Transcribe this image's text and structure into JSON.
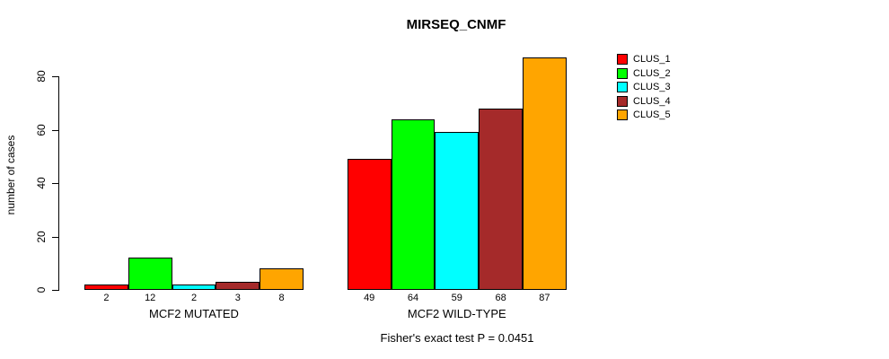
{
  "chart_data": {
    "type": "bar",
    "title": "MIRSEQ_CNMF",
    "subtitle": "Fisher's exact test P = 0.0451",
    "ylabel": "number of cases",
    "xlabel": "",
    "ylim": [
      0,
      88
    ],
    "yticks": [
      0,
      20,
      40,
      60,
      80
    ],
    "grid": false,
    "legend_position": "top-right",
    "categories": [
      "MCF2 MUTATED",
      "MCF2 WILD-TYPE"
    ],
    "series": [
      {
        "name": "CLUS_1",
        "color": "#FF0000",
        "values": [
          2,
          49
        ]
      },
      {
        "name": "CLUS_2",
        "color": "#00FF00",
        "values": [
          12,
          64
        ]
      },
      {
        "name": "CLUS_3",
        "color": "#00FFFF",
        "values": [
          2,
          59
        ]
      },
      {
        "name": "CLUS_4",
        "color": "#A52A2A",
        "values": [
          3,
          68
        ]
      },
      {
        "name": "CLUS_5",
        "color": "#FFA500",
        "values": [
          8,
          87
        ]
      }
    ],
    "bar_value_labels_shown": true
  }
}
